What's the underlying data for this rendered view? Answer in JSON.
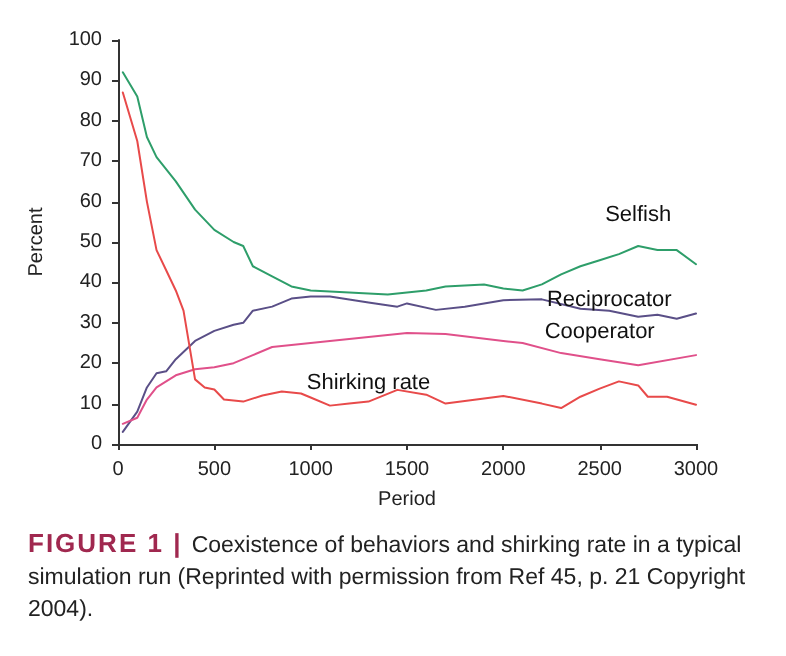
{
  "chart_data": {
    "type": "line",
    "xlabel": "Period",
    "ylabel": "Percent",
    "annotations": [
      "FIGURE 1 |",
      "Coexistence of behaviors and shirking rate in a typical simulation run (Reprinted with permission from Ref 45, p. 21 Copyright 2004)."
    ],
    "xlim": [
      0,
      3000
    ],
    "xticks": [
      0,
      500,
      1000,
      1500,
      2000,
      2500,
      3000
    ],
    "ylim": [
      0,
      100
    ],
    "yticks": [
      0,
      10,
      20,
      30,
      40,
      50,
      60,
      70,
      80,
      90,
      100
    ],
    "grid": false,
    "marker": "none",
    "line_style": "solid",
    "series": [
      {
        "name": "Selfish",
        "color": "#2e9e6a",
        "x": [
          25,
          100,
          150,
          200,
          300,
          400,
          500,
          600,
          650,
          700,
          800,
          900,
          1000,
          1200,
          1400,
          1500,
          1600,
          1700,
          1900,
          2000,
          2100,
          2200,
          2300,
          2400,
          2500,
          2600,
          2700,
          2800,
          2900,
          3000
        ],
        "values": [
          92,
          86,
          76,
          71,
          65,
          58,
          53,
          50,
          49,
          44,
          41.5,
          39,
          38,
          37.5,
          37,
          37.5,
          38,
          39,
          39.5,
          38.5,
          38,
          39.5,
          42,
          44,
          45.5,
          47,
          49,
          48,
          48,
          44.5
        ]
      },
      {
        "name": "Reciprocator",
        "color": "#5a4f87",
        "x": [
          25,
          100,
          150,
          200,
          250,
          300,
          400,
          500,
          600,
          650,
          700,
          800,
          900,
          1000,
          1100,
          1300,
          1450,
          1500,
          1650,
          1800,
          2000,
          2200,
          2400,
          2550,
          2700,
          2800,
          2900,
          3000
        ],
        "values": [
          3,
          8,
          14,
          17.5,
          18,
          21,
          25.5,
          28,
          29.5,
          30,
          33,
          34,
          36,
          36.5,
          36.5,
          35,
          34,
          34.8,
          33.2,
          34,
          35.6,
          35.8,
          33.5,
          33,
          31.5,
          32,
          31,
          32.3
        ]
      },
      {
        "name": "Cooperator",
        "color": "#e0508a",
        "x": [
          25,
          100,
          150,
          200,
          300,
          400,
          500,
          600,
          700,
          800,
          900,
          1000,
          1200,
          1500,
          1700,
          2000,
          2100,
          2300,
          2500,
          2700,
          3000
        ],
        "values": [
          5,
          6.5,
          11,
          14,
          17,
          18.5,
          19,
          20,
          22,
          24,
          24.5,
          25,
          26,
          27.5,
          27.2,
          25.5,
          25,
          22.5,
          21,
          19.5,
          22
        ]
      },
      {
        "name": "Shirking rate",
        "color": "#e84a4a",
        "x": [
          25,
          100,
          150,
          200,
          250,
          300,
          340,
          400,
          450,
          500,
          550,
          650,
          750,
          850,
          950,
          1000,
          1100,
          1200,
          1300,
          1450,
          1600,
          1700,
          2000,
          2200,
          2300,
          2400,
          2500,
          2600,
          2700,
          2750,
          2850,
          3000
        ],
        "values": [
          87,
          75,
          60,
          48,
          43,
          38,
          33,
          16,
          14,
          13.5,
          11,
          10.5,
          12,
          13,
          12.5,
          11.5,
          9.5,
          10,
          10.5,
          13.4,
          12.2,
          10,
          11.9,
          10,
          8.9,
          11.7,
          13.7,
          15.5,
          14.5,
          11.7,
          11.7,
          9.7
        ]
      }
    ]
  }
}
